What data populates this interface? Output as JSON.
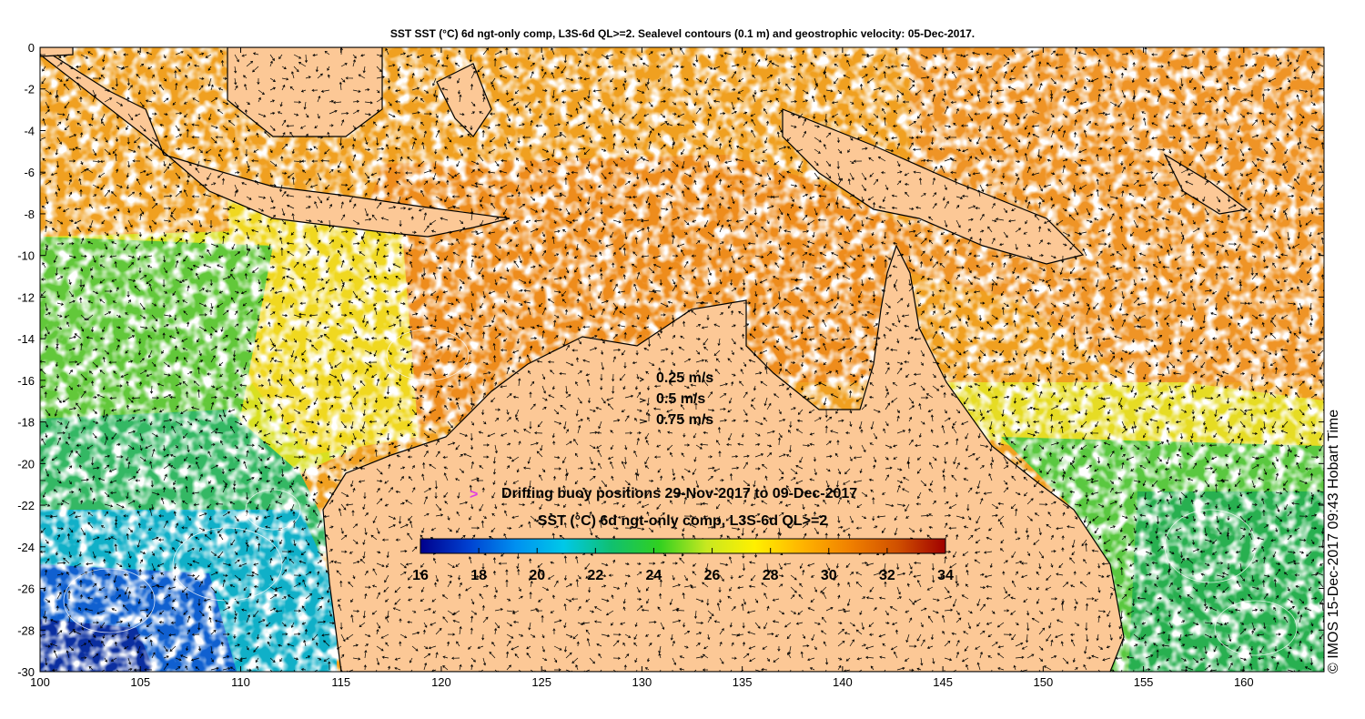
{
  "title": "SST SST (°C) 6d ngt-only comp, L3S-6d QL>=2. Sealevel contours (0.1 m) and geostrophic velocity: 05-Dec-2017.",
  "map": {
    "lon_range": [
      100,
      164
    ],
    "lat_range": [
      -30,
      0
    ],
    "lon_ticks": [
      100,
      105,
      110,
      115,
      120,
      125,
      130,
      135,
      140,
      145,
      150,
      155,
      160
    ],
    "lat_ticks": [
      0,
      -2,
      -4,
      -6,
      -8,
      -10,
      -12,
      -14,
      -16,
      -18,
      -20,
      -22,
      -24,
      -26,
      -28,
      -30
    ],
    "land_color": "#fcc896"
  },
  "velocity_legend": [
    {
      "label": "0.25 m/s",
      "speed": 0.25
    },
    {
      "label": "0.5 m/s",
      "speed": 0.5
    },
    {
      "label": "0.75 m/s",
      "speed": 0.75
    }
  ],
  "buoy_legend": {
    "symbol": ">",
    "label": "Drifting buoy positions 29-Nov-2017 to 09-Dec-2017",
    "color": "#e040e0"
  },
  "colorbar": {
    "title": "SST (°C) 6d ngt-only comp, L3S-6d QL>=2",
    "min": 16,
    "max": 34,
    "ticks": [
      "16",
      "18",
      "20",
      "22",
      "24",
      "26",
      "28",
      "30",
      "32",
      "34"
    ],
    "colors": [
      "#00008c",
      "#0040d0",
      "#0090f0",
      "#00c8e8",
      "#10c070",
      "#30d020",
      "#c8e820",
      "#fff000",
      "#ffb400",
      "#f08000",
      "#d05000",
      "#a00000"
    ]
  },
  "credit": "© IMOS 15-Dec-2017 09:43 Hobart Time"
}
